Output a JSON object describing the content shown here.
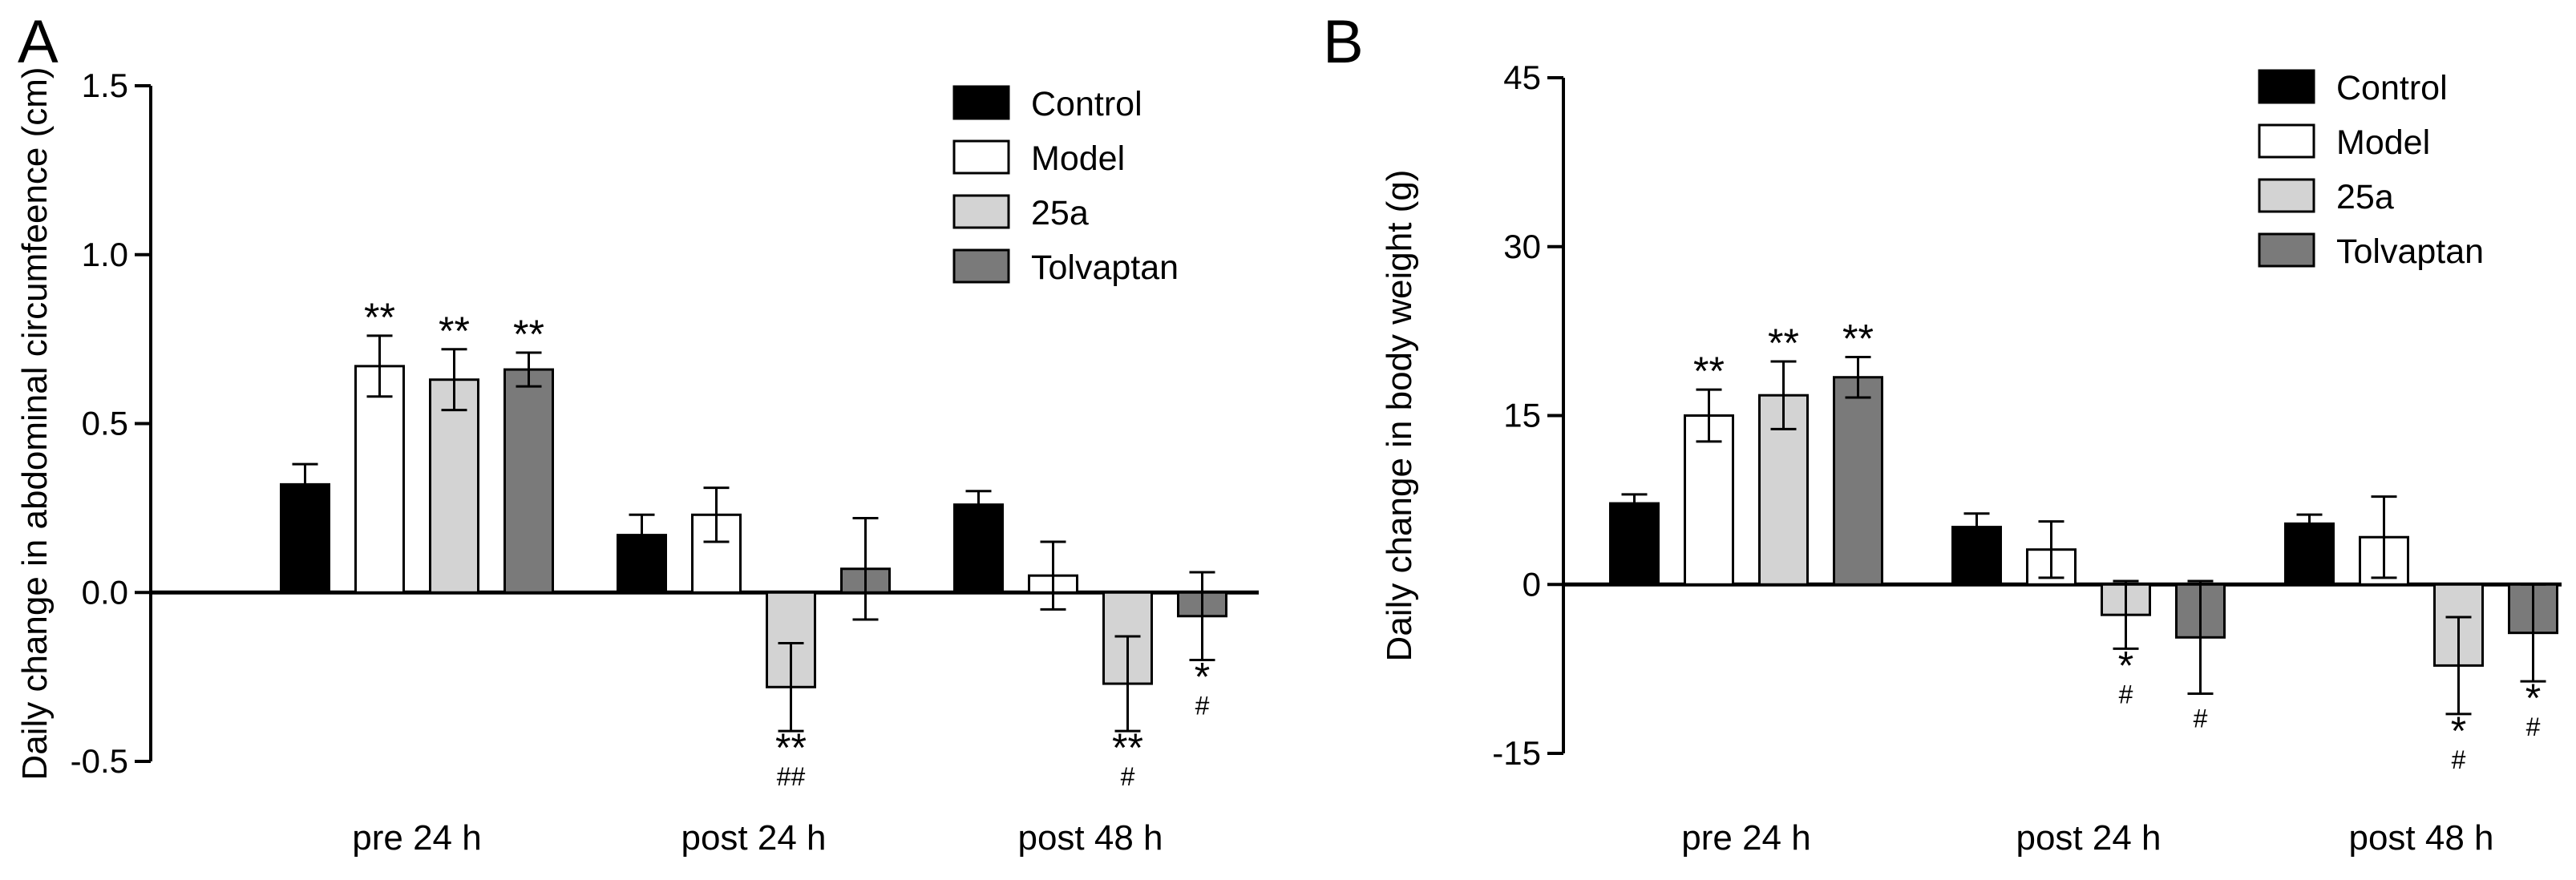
{
  "colors": {
    "Control": "#000000",
    "Model": "#ffffff",
    "25a": "#d3d3d3",
    "Tolvaptan": "#7a7a7a"
  },
  "chart_data": [
    {
      "panel": "A",
      "type": "bar",
      "title": "",
      "xlabel": "",
      "ylabel": "Daily change in abdominal circumfeence (cm)",
      "ylim": [
        -0.5,
        1.5
      ],
      "yticks": [
        "-0.5",
        "0.0",
        "0.5",
        "1.0",
        "1.5"
      ],
      "ytick_values": [
        -0.5,
        0.0,
        0.5,
        1.0,
        1.5
      ],
      "categories": [
        "pre 24 h",
        "post 24 h",
        "post 48 h"
      ],
      "legend": [
        "Control",
        "Model",
        "25a",
        "Tolvaptan"
      ],
      "legend_position": "top-right",
      "series": [
        {
          "name": "Control",
          "values": [
            0.32,
            0.17,
            0.26
          ],
          "errors": [
            0.06,
            0.06,
            0.04
          ]
        },
        {
          "name": "Model",
          "values": [
            0.67,
            0.23,
            0.05
          ],
          "errors": [
            0.09,
            0.08,
            0.1
          ]
        },
        {
          "name": "25a",
          "values": [
            0.63,
            -0.28,
            -0.27
          ],
          "errors": [
            0.09,
            0.13,
            0.14
          ]
        },
        {
          "name": "Tolvaptan",
          "values": [
            0.66,
            0.07,
            -0.07
          ],
          "errors": [
            0.05,
            0.15,
            0.13
          ]
        }
      ],
      "annotations": [
        {
          "series": 1,
          "category": 0,
          "star": "**",
          "hash": ""
        },
        {
          "series": 2,
          "category": 0,
          "star": "**",
          "hash": ""
        },
        {
          "series": 3,
          "category": 0,
          "star": "**",
          "hash": ""
        },
        {
          "series": 2,
          "category": 1,
          "star": "**",
          "hash": "##"
        },
        {
          "series": 2,
          "category": 2,
          "star": "**",
          "hash": "#"
        },
        {
          "series": 3,
          "category": 2,
          "star": "*",
          "hash": "#"
        }
      ]
    },
    {
      "panel": "B",
      "type": "bar",
      "title": "",
      "xlabel": "",
      "ylabel": "Daily change in body weight (g)",
      "ylim": [
        -15,
        45
      ],
      "yticks": [
        "-15",
        "0",
        "15",
        "30",
        "45"
      ],
      "ytick_values": [
        -15,
        0,
        15,
        30,
        45
      ],
      "categories": [
        "pre 24 h",
        "post 24 h",
        "post 48 h"
      ],
      "legend": [
        "Control",
        "Model",
        "25a",
        "Tolvaptan"
      ],
      "legend_position": "top-right",
      "series": [
        {
          "name": "Control",
          "values": [
            7.2,
            5.1,
            5.4
          ],
          "errors": [
            0.8,
            1.2,
            0.8
          ]
        },
        {
          "name": "Model",
          "values": [
            15.0,
            3.1,
            4.2
          ],
          "errors": [
            2.3,
            2.5,
            3.6
          ]
        },
        {
          "name": "25a",
          "values": [
            16.8,
            -2.7,
            -7.2
          ],
          "errors": [
            3.0,
            3.0,
            4.3
          ]
        },
        {
          "name": "Tolvaptan",
          "values": [
            18.4,
            -4.7,
            -4.3
          ],
          "errors": [
            1.8,
            5.0,
            4.3
          ]
        }
      ],
      "annotations": [
        {
          "series": 1,
          "category": 0,
          "star": "**",
          "hash": ""
        },
        {
          "series": 2,
          "category": 0,
          "star": "**",
          "hash": ""
        },
        {
          "series": 3,
          "category": 0,
          "star": "**",
          "hash": ""
        },
        {
          "series": 2,
          "category": 1,
          "star": "*",
          "hash": "#"
        },
        {
          "series": 3,
          "category": 1,
          "star": "",
          "hash": "#"
        },
        {
          "series": 2,
          "category": 2,
          "star": "*",
          "hash": "#"
        },
        {
          "series": 3,
          "category": 2,
          "star": "*",
          "hash": "#"
        }
      ]
    }
  ]
}
